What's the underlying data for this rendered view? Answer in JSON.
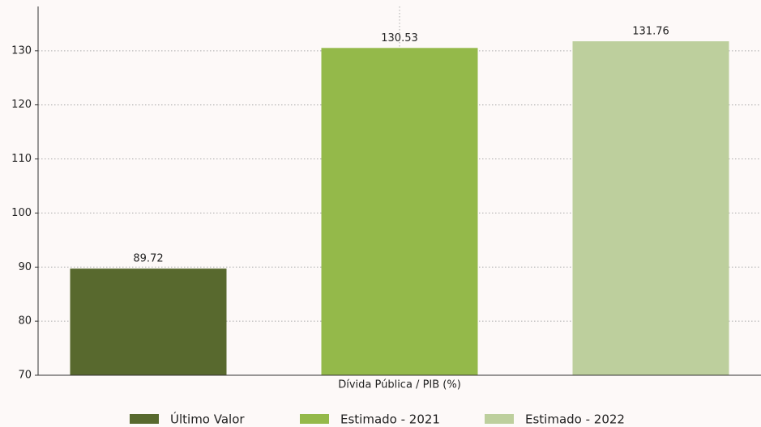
{
  "chart_data": {
    "type": "bar",
    "categories": [
      "Dívida Pública / PIB (%)"
    ],
    "series": [
      {
        "name": "Último Valor",
        "color": "#58692e",
        "values": [
          89.72
        ]
      },
      {
        "name": "Estimado - 2021",
        "color": "#94b94a",
        "values": [
          130.53
        ]
      },
      {
        "name": "Estimado - 2022",
        "color": "#bdcf9d",
        "values": [
          131.76
        ]
      }
    ],
    "ylim": [
      70,
      138.2
    ],
    "yticks": [
      70,
      80,
      90,
      100,
      110,
      120,
      130
    ],
    "grid": true
  }
}
